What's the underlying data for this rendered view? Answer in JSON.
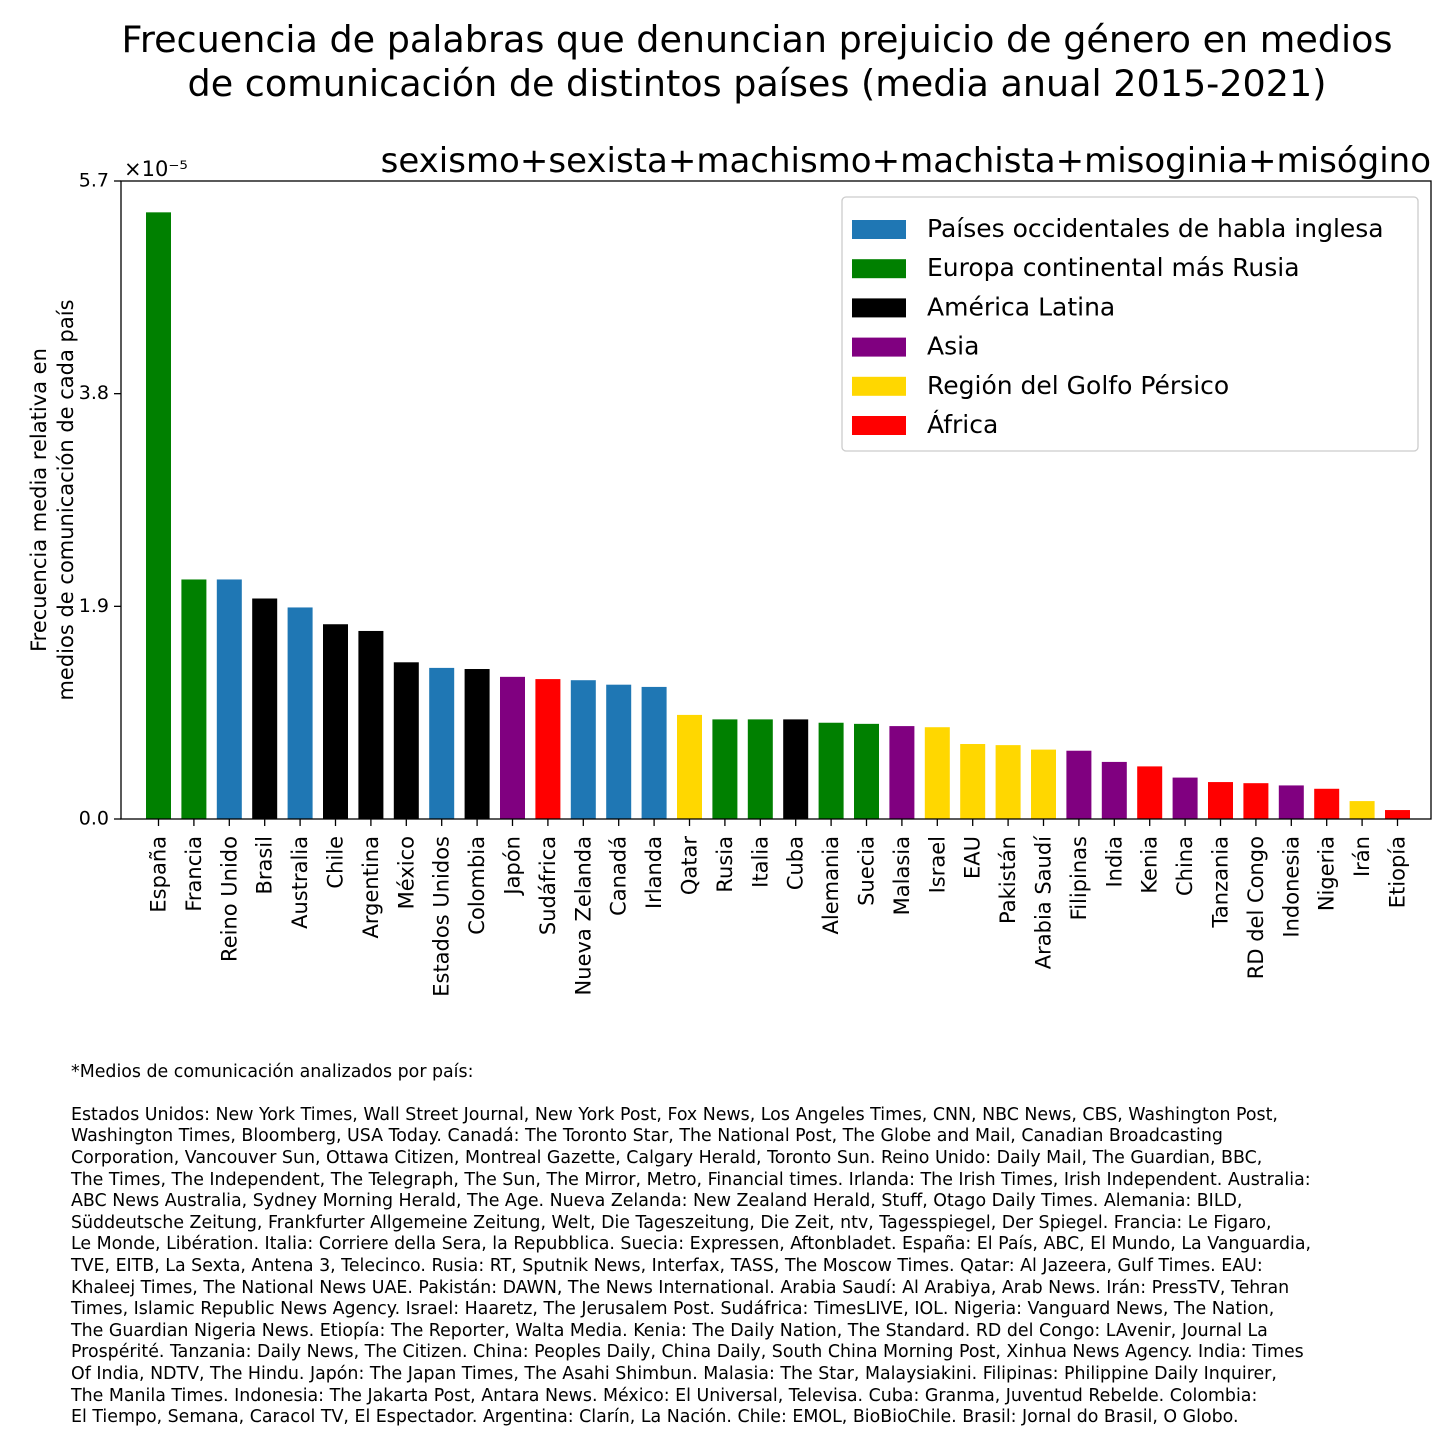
{
  "chart_data": {
    "type": "bar",
    "title": "Frecuencia de palabras que denuncian prejuicio de género en medios\nde comunicación de distintos países (media anual 2015-2021)",
    "subtitle": "sexismo+sexista+machismo+machista+misoginia+misógino",
    "ylabel": "Frecuencia media relativa en\nmedios de comunicación de cada país",
    "yscale_label": "×10⁻⁵",
    "ylim": [
      0,
      5.7
    ],
    "yticks": [
      "0.0",
      "1.9",
      "3.8",
      "5.7"
    ],
    "grid": false,
    "legend_position": "top-right",
    "categories": [
      "España",
      "Francia",
      "Reino Unido",
      "Brasil",
      "Australia",
      "Chile",
      "Argentina",
      "México",
      "Estados Unidos",
      "Colombia",
      "Japón",
      "Sudáfrica",
      "Nueva Zelanda",
      "Canadá",
      "Irlanda",
      "Qatar",
      "Rusia",
      "Italia",
      "Cuba",
      "Alemania",
      "Suecia",
      "Malasia",
      "Israel",
      "EAU",
      "Pakistán",
      "Arabia Saudí",
      "Filipinas",
      "India",
      "Kenia",
      "China",
      "Tanzania",
      "RD del Congo",
      "Indonesia",
      "Nigeria",
      "Irán",
      "Etiopía"
    ],
    "values": [
      5.42,
      2.14,
      2.14,
      1.97,
      1.89,
      1.74,
      1.68,
      1.4,
      1.35,
      1.34,
      1.27,
      1.25,
      1.24,
      1.2,
      1.18,
      0.93,
      0.89,
      0.89,
      0.89,
      0.86,
      0.85,
      0.83,
      0.82,
      0.67,
      0.66,
      0.62,
      0.61,
      0.51,
      0.47,
      0.37,
      0.33,
      0.32,
      0.3,
      0.27,
      0.16,
      0.08
    ],
    "groups": [
      "europa",
      "europa",
      "anglo",
      "latam",
      "anglo",
      "latam",
      "latam",
      "latam",
      "anglo",
      "latam",
      "asia",
      "africa",
      "anglo",
      "anglo",
      "anglo",
      "golfo",
      "europa",
      "europa",
      "latam",
      "europa",
      "europa",
      "asia",
      "golfo",
      "golfo",
      "golfo",
      "golfo",
      "asia",
      "asia",
      "africa",
      "asia",
      "africa",
      "africa",
      "asia",
      "africa",
      "golfo",
      "africa"
    ],
    "legend": [
      {
        "key": "anglo",
        "label": "Países occidentales de habla inglesa",
        "color": "#1f77b4"
      },
      {
        "key": "europa",
        "label": "Europa continental más Rusia",
        "color": "#008000"
      },
      {
        "key": "latam",
        "label": "América Latina",
        "color": "#000000"
      },
      {
        "key": "asia",
        "label": "Asia",
        "color": "#800080"
      },
      {
        "key": "golfo",
        "label": "Región del Golfo Pérsico",
        "color": "#ffd700"
      },
      {
        "key": "africa",
        "label": "África",
        "color": "#ff0000"
      }
    ]
  },
  "footnote": {
    "heading": "*Medios de comunicación analizados por país:",
    "body": "Estados Unidos: New York Times, Wall Street Journal, New York Post, Fox News, Los Angeles Times, CNN, NBC News, CBS, Washington Post,\nWashington Times, Bloomberg, USA Today. Canadá: The Toronto Star, The National Post, The Globe and Mail, Canadian Broadcasting\nCorporation, Vancouver Sun, Ottawa Citizen, Montreal Gazette, Calgary Herald, Toronto Sun. Reino Unido: Daily Mail, The Guardian, BBC,\nThe Times, The Independent, The Telegraph, The Sun, The Mirror, Metro, Financial times. Irlanda: The Irish Times, Irish Independent. Australia:\nABC News Australia, Sydney Morning Herald, The Age. Nueva Zelanda: New Zealand Herald, Stuff, Otago Daily Times. Alemania: BILD,\nSüddeutsche Zeitung, Frankfurter Allgemeine Zeitung, Welt, Die Tageszeitung, Die Zeit, ntv, Tagesspiegel, Der Spiegel. Francia: Le Figaro,\nLe Monde, Libération. Italia: Corriere della Sera, la Repubblica. Suecia: Expressen, Aftonbladet. España: El País, ABC, El Mundo, La Vanguardia,\nTVE, EITB, La Sexta, Antena 3, Telecinco. Rusia: RT, Sputnik News, Interfax, TASS, The Moscow Times. Qatar: Al Jazeera, Gulf Times. EAU:\nKhaleej Times, The National News UAE. Pakistán: DAWN, The News International. Arabia Saudí: Al Arabiya, Arab News. Irán: PressTV, Tehran\nTimes, Islamic Republic News Agency. Israel: Haaretz, The Jerusalem Post. Sudáfrica: TimesLIVE, IOL. Nigeria: Vanguard News, The Nation,\nThe Guardian Nigeria News. Etiopía: The Reporter, Walta Media. Kenia: The Daily Nation, The Standard. RD del Congo: LAvenir, Journal La\nProspérité. Tanzania: Daily News, The Citizen. China: Peoples Daily, China Daily, South China Morning Post, Xinhua News Agency. India: Times\nOf India, NDTV, The Hindu. Japón: The Japan Times, The Asahi Shimbun. Malasia: The Star, Malaysiakini. Filipinas: Philippine Daily Inquirer,\nThe Manila Times. Indonesia: The Jakarta Post, Antara News. México: El Universal, Televisa. Cuba: Granma, Juventud Rebelde. Colombia:\nEl Tiempo, Semana, Caracol TV, El Espectador. Argentina: Clarín, La Nación. Chile: EMOL, BioBioChile. Brasil: Jornal do Brasil, O Globo."
  }
}
